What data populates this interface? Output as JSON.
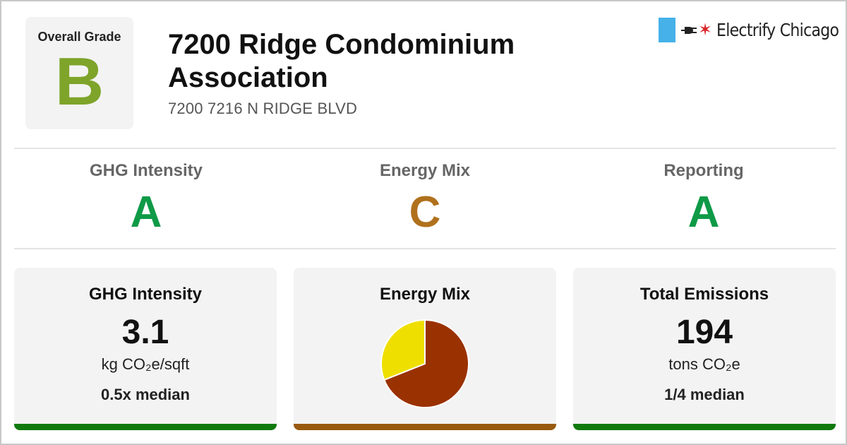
{
  "overall": {
    "label": "Overall Grade",
    "grade": "B",
    "grade_color": "#7ea42a"
  },
  "building": {
    "name": "7200 Ridge Condominium Association",
    "address": "7200 7216 N RIDGE BLVD"
  },
  "logo": {
    "text": "Electrify Chicago",
    "flag_color": "#45b1e8",
    "star_color": "#d9252a",
    "icon": "plug-icon"
  },
  "grades": [
    {
      "label": "GHG Intensity",
      "grade": "A",
      "color": "#0e9a47"
    },
    {
      "label": "Energy Mix",
      "grade": "C",
      "color": "#b0711c"
    },
    {
      "label": "Reporting",
      "grade": "A",
      "color": "#0e9a47"
    }
  ],
  "cards": {
    "ghg": {
      "title": "GHG Intensity",
      "value": "3.1",
      "unit": "kg CO₂e/sqft",
      "note": "0.5x median",
      "bar_color": "#117a0f"
    },
    "mix": {
      "title": "Energy Mix",
      "bar_color": "#985a0e"
    },
    "emissions": {
      "title": "Total Emissions",
      "value": "194",
      "unit": "tons CO₂e",
      "note": "1/4 median",
      "bar_color": "#117a0f"
    }
  },
  "chart_data": {
    "type": "pie",
    "title": "",
    "slices": [
      {
        "value": 69,
        "color": "#9a3100"
      },
      {
        "value": 31,
        "color": "#efdf00"
      }
    ]
  }
}
